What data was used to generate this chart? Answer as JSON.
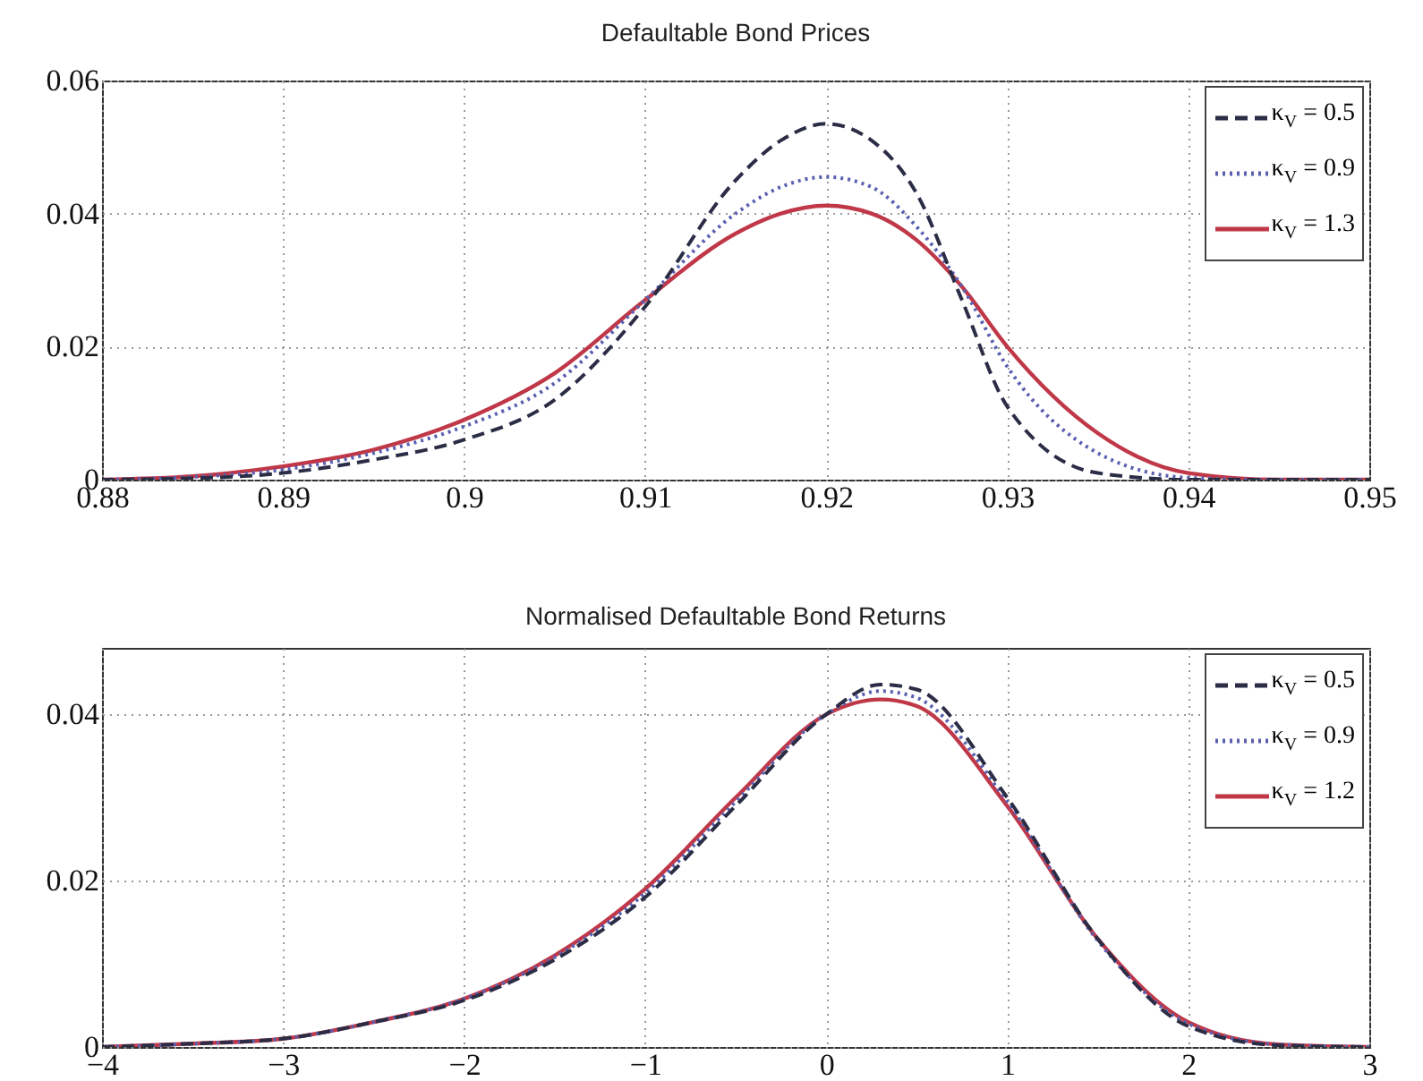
{
  "chart_data": [
    {
      "type": "line",
      "title": "Defaultable Bond Prices",
      "x": [
        0.88,
        0.885,
        0.89,
        0.895,
        0.9,
        0.905,
        0.91,
        0.915,
        0.9175,
        0.92,
        0.9225,
        0.925,
        0.9275,
        0.93,
        0.935,
        0.94,
        0.945,
        0.95
      ],
      "series": [
        {
          "name": "κ$_{V}$ = 0.5",
          "color": "#2a2d45",
          "line_style": "dashed",
          "values": [
            0,
            0.0002,
            0.001,
            0.003,
            0.006,
            0.012,
            0.026,
            0.045,
            0.051,
            0.0535,
            0.051,
            0.043,
            0.027,
            0.011,
            0.001,
            0,
            0,
            0
          ]
        },
        {
          "name": "κ$_{V}$ = 0.9",
          "color": "#5a5fb0",
          "line_style": "dotted",
          "values": [
            0,
            0.0004,
            0.0015,
            0.004,
            0.008,
            0.0145,
            0.027,
            0.04,
            0.044,
            0.0455,
            0.044,
            0.038,
            0.029,
            0.017,
            0.004,
            0.0003,
            0,
            0
          ]
        },
        {
          "name": "κ$_{V}$ = 1.3",
          "color": "#c03848",
          "line_style": "solid",
          "values": [
            0,
            0.0005,
            0.002,
            0.0045,
            0.009,
            0.016,
            0.027,
            0.037,
            0.04,
            0.0412,
            0.04,
            0.036,
            0.029,
            0.02,
            0.007,
            0.001,
            0,
            0
          ]
        }
      ],
      "xlim": [
        0.88,
        0.95
      ],
      "xticks": [
        0.88,
        0.89,
        0.9,
        0.91,
        0.92,
        0.93,
        0.94,
        0.95
      ],
      "ylim": [
        0,
        0.06
      ],
      "yticks": [
        0,
        0.02,
        0.04,
        0.06
      ],
      "grid": true,
      "legend": "top right"
    },
    {
      "type": "line",
      "title": "Normalised Defaultable Bond Returns",
      "x": [
        -4,
        -3.5,
        -3,
        -2.5,
        -2,
        -1.5,
        -1,
        -0.5,
        0,
        0.3,
        0.5,
        1,
        1.5,
        2,
        2.5,
        3
      ],
      "series": [
        {
          "name": "κ$_{V}$ = 0.5",
          "color": "#2a2d45",
          "line_style": "dashed",
          "values": [
            0,
            0.0004,
            0.001,
            0.003,
            0.0056,
            0.0105,
            0.018,
            0.029,
            0.04,
            0.0436,
            0.043,
            0.03,
            0.013,
            0.0025,
            0.0002,
            0
          ]
        },
        {
          "name": "κ$_{V}$ = 0.9",
          "color": "#5a5fb0",
          "line_style": "dotted",
          "values": [
            0,
            0.0004,
            0.001,
            0.003,
            0.0058,
            0.0108,
            0.0185,
            0.0295,
            0.04,
            0.0428,
            0.042,
            0.0295,
            0.0128,
            0.0028,
            0.0003,
            0
          ]
        },
        {
          "name": "κ$_{V}$ = 1.2",
          "color": "#c03848",
          "line_style": "solid",
          "values": [
            0,
            0.0004,
            0.001,
            0.003,
            0.0058,
            0.011,
            0.019,
            0.03,
            0.04,
            0.0418,
            0.041,
            0.029,
            0.013,
            0.003,
            0.0003,
            0
          ]
        }
      ],
      "xlim": [
        -4,
        3
      ],
      "xticks": [
        -4,
        -3,
        -2,
        -1,
        0,
        1,
        2,
        3
      ],
      "ylim": [
        0,
        0.048
      ],
      "yticks": [
        0,
        0.02,
        0.04
      ],
      "grid": true,
      "legend": "top right"
    }
  ]
}
